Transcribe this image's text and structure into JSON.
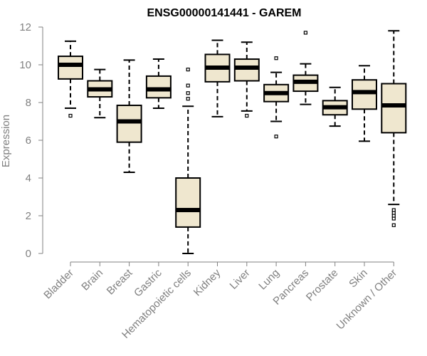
{
  "chart_data": {
    "type": "boxplot",
    "title": "ENSG00000141441 - GAREM",
    "xlabel": "",
    "ylabel": "Expression",
    "ylim": [
      0,
      12
    ],
    "yticks": [
      0,
      2,
      4,
      6,
      8,
      10,
      12
    ],
    "grid": false,
    "legend": "none",
    "box_fill": "#EFE7CF",
    "categories": [
      "Bladder",
      "Brain",
      "Breast",
      "Gastric",
      "Hematopoietic cells",
      "Kidney",
      "Liver",
      "Lung",
      "Pancreas",
      "Prostate",
      "Skin",
      "Unknown / Other"
    ],
    "boxes": [
      {
        "whisker_low": 7.7,
        "q1": 9.25,
        "median": 10.0,
        "q3": 10.45,
        "whisker_high": 11.25,
        "outliers": [
          7.3
        ]
      },
      {
        "whisker_low": 7.2,
        "q1": 8.3,
        "median": 8.7,
        "q3": 9.15,
        "whisker_high": 9.75,
        "outliers": []
      },
      {
        "whisker_low": 4.3,
        "q1": 5.9,
        "median": 7.0,
        "q3": 7.85,
        "whisker_high": 10.25,
        "outliers": []
      },
      {
        "whisker_low": 7.7,
        "q1": 8.25,
        "median": 8.7,
        "q3": 9.4,
        "whisker_high": 10.3,
        "outliers": []
      },
      {
        "whisker_low": 0.0,
        "q1": 1.4,
        "median": 2.3,
        "q3": 4.0,
        "whisker_high": 7.8,
        "outliers": [
          8.2,
          8.5,
          8.9,
          9.75
        ]
      },
      {
        "whisker_low": 7.25,
        "q1": 9.1,
        "median": 9.85,
        "q3": 10.55,
        "whisker_high": 11.3,
        "outliers": []
      },
      {
        "whisker_low": 7.55,
        "q1": 9.15,
        "median": 9.85,
        "q3": 10.3,
        "whisker_high": 11.2,
        "outliers": [
          7.3
        ]
      },
      {
        "whisker_low": 7.0,
        "q1": 8.05,
        "median": 8.5,
        "q3": 8.95,
        "whisker_high": 9.6,
        "outliers": [
          6.2,
          10.35
        ]
      },
      {
        "whisker_low": 7.9,
        "q1": 8.6,
        "median": 9.1,
        "q3": 9.45,
        "whisker_high": 10.05,
        "outliers": [
          11.7
        ]
      },
      {
        "whisker_low": 6.75,
        "q1": 7.35,
        "median": 7.75,
        "q3": 8.1,
        "whisker_high": 8.8,
        "outliers": []
      },
      {
        "whisker_low": 5.95,
        "q1": 7.65,
        "median": 8.55,
        "q3": 9.2,
        "whisker_high": 9.95,
        "outliers": []
      },
      {
        "whisker_low": 2.6,
        "q1": 6.4,
        "median": 7.85,
        "q3": 9.0,
        "whisker_high": 11.8,
        "outliers": [
          1.5,
          1.85,
          2.0,
          2.15,
          2.3
        ]
      }
    ]
  }
}
